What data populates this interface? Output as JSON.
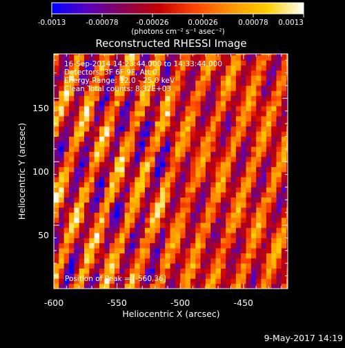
{
  "chart_data": {
    "type": "heatmap",
    "title": "Reconstructed RHESSI Image",
    "xlabel": "Heliocentric X (arcsec)",
    "ylabel": "Heliocentric Y (arcsec)",
    "xlim": [
      -600,
      -415
    ],
    "ylim": [
      0,
      185
    ],
    "x_ticks": [
      -600,
      -550,
      -500,
      -450
    ],
    "y_ticks": [
      50,
      100,
      150
    ],
    "info_lines": [
      "16-Sep-2014 14:23:44.000 to 14:33:44.000",
      "Detectors: 3F 6F 9F, Att 0",
      "Energy Range: 12.0 - 25.0 keV",
      "Clean     Total counts: 8.32E+03"
    ],
    "peak_label": "Position of Peak = [-560,36]",
    "colorbar": {
      "min": -0.0013,
      "max": 0.0013,
      "ticks": [
        "-0.0013",
        "-0.00078",
        "-0.00026",
        "0.00026",
        "0.00078",
        "0.0013"
      ],
      "units": "(photons cm⁻² s⁻¹ asec⁻²)",
      "colormap": [
        "#0000ff",
        "#5a00c0",
        "#8a0050",
        "#c80000",
        "#ff4600",
        "#ff9600",
        "#ffd000",
        "#ffffff"
      ]
    },
    "pattern": "diagonal stripes of alternating positive and negative flux"
  },
  "footer": {
    "date": "9-May-2017 14:19"
  }
}
